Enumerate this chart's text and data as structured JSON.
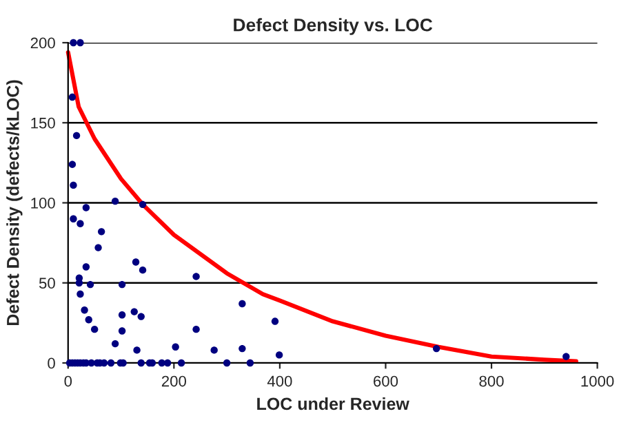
{
  "chart_data": {
    "type": "scatter",
    "title": "Defect Density vs. LOC",
    "xlabel": "LOC under Review",
    "ylabel": "Defect Density (defects/kLOC)",
    "xlim": [
      0,
      1000
    ],
    "ylim": [
      0,
      200
    ],
    "xticks": [
      0,
      200,
      400,
      600,
      800,
      1000
    ],
    "yticks": [
      0,
      50,
      100,
      150,
      200
    ],
    "grid": "y",
    "legend": false,
    "series": [
      {
        "color": "#000080",
        "marker": "circle",
        "x": [
          10,
          23,
          8,
          16,
          8,
          10,
          34,
          89,
          141,
          10,
          23,
          63,
          57,
          34,
          21,
          21,
          42,
          23,
          31,
          39,
          50,
          89,
          102,
          102,
          102,
          125,
          138,
          128,
          141,
          130,
          203,
          242,
          242,
          276,
          329,
          329,
          391,
          399,
          696,
          941,
          3,
          8,
          13,
          18,
          23,
          29,
          34,
          44,
          55,
          60,
          68,
          81,
          99,
          104,
          138,
          154,
          159,
          177,
          188,
          214,
          300,
          344
        ],
        "values": [
          200,
          200,
          166,
          142,
          124,
          111,
          97,
          101,
          99,
          90,
          87,
          82,
          72,
          60,
          53,
          50,
          49,
          43,
          33,
          27,
          21,
          12,
          49,
          30,
          20,
          32,
          29,
          63,
          58,
          8,
          10,
          54,
          21,
          8,
          37,
          9,
          26,
          5,
          9,
          4,
          0,
          0,
          0,
          0,
          0,
          0,
          0,
          0,
          0,
          0,
          0,
          0,
          0,
          0,
          0,
          0,
          0,
          0,
          0,
          0,
          0,
          0
        ]
      },
      {
        "type": "line",
        "color": "#ff0000",
        "marker": "none",
        "line_style": "solid",
        "x": [
          0,
          20,
          50,
          100,
          141,
          200,
          300,
          368,
          400,
          500,
          600,
          700,
          800,
          900,
          960
        ],
        "values": [
          194,
          160,
          140,
          115,
          99,
          80,
          56,
          43,
          39,
          26,
          17,
          10,
          4,
          2,
          1
        ]
      }
    ]
  }
}
